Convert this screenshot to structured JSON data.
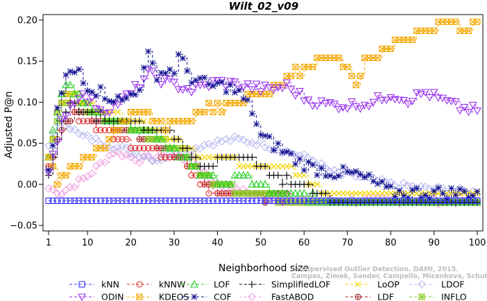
{
  "chart_data": {
    "type": "line",
    "title": "Wilt_02_v09",
    "xlabel": "Neighborhood size",
    "ylabel": "Adjusted P@n",
    "xlim": [
      1,
      100
    ],
    "ylim": [
      -0.05,
      0.2
    ],
    "xticks": [
      1,
      10,
      20,
      30,
      40,
      50,
      60,
      70,
      80,
      90,
      100
    ],
    "yticks": [
      -0.05,
      0.0,
      0.05,
      0.1,
      0.15,
      0.2
    ],
    "yticklabels": [
      "−0.05",
      "0.00",
      "0.05",
      "0.10",
      "0.15",
      "0.20"
    ],
    "grid": false,
    "legend_position": "bottom",
    "watermark": [
      "Campos, Zimek, Sander, Campello, Micenkova, Schubert, Assent, Houle",
      "Unsupervised Outlier Detection. DAMI, 2015."
    ],
    "series": [
      {
        "name": "kNN",
        "color": "#3232ff",
        "marker": "square",
        "knots": [
          [
            1,
            -0.02
          ],
          [
            100,
            -0.02
          ]
        ]
      },
      {
        "name": "kNNW",
        "color": "#dd2b2b",
        "marker": "circle",
        "knots": [
          [
            1,
            0.023
          ],
          [
            3,
            0.09
          ],
          [
            5,
            0.11
          ],
          [
            8,
            0.08
          ],
          [
            12,
            0.07
          ],
          [
            16,
            0.06
          ],
          [
            20,
            0.05
          ],
          [
            26,
            0.04
          ],
          [
            32,
            0.03
          ],
          [
            36,
            0.0
          ],
          [
            40,
            -0.009
          ],
          [
            45,
            -0.009
          ],
          [
            52,
            -0.015
          ],
          [
            60,
            -0.02
          ],
          [
            100,
            -0.02
          ]
        ]
      },
      {
        "name": "LOF",
        "color": "#22cc22",
        "marker": "triangle-up",
        "knots": [
          [
            1,
            0.035
          ],
          [
            3,
            0.09
          ],
          [
            5,
            0.125
          ],
          [
            8,
            0.11
          ],
          [
            11,
            0.09
          ],
          [
            15,
            0.08
          ],
          [
            20,
            0.07
          ],
          [
            26,
            0.06
          ],
          [
            30,
            0.04
          ],
          [
            35,
            0.02
          ],
          [
            38,
            0.008
          ],
          [
            42,
            0.0
          ],
          [
            45,
            0.013
          ],
          [
            48,
            0.005
          ],
          [
            52,
            -0.01
          ],
          [
            60,
            -0.018
          ],
          [
            100,
            -0.02
          ]
        ]
      },
      {
        "name": "SimplifiedLOF",
        "color": "#000000",
        "marker": "plus",
        "knots": [
          [
            1,
            0.008
          ],
          [
            3,
            0.06
          ],
          [
            6,
            0.1
          ],
          [
            9,
            0.088
          ],
          [
            14,
            0.08
          ],
          [
            18,
            0.075
          ],
          [
            24,
            0.07
          ],
          [
            28,
            0.068
          ],
          [
            32,
            0.045
          ],
          [
            36,
            0.025
          ],
          [
            40,
            0.03
          ],
          [
            45,
            0.035
          ],
          [
            50,
            0.02
          ],
          [
            55,
            0.005
          ],
          [
            60,
            0.0
          ],
          [
            64,
            -0.012
          ],
          [
            68,
            -0.02
          ],
          [
            100,
            -0.02
          ]
        ]
      },
      {
        "name": "LoOP",
        "color": "#f2d500",
        "marker": "x",
        "knots": [
          [
            1,
            0.03
          ],
          [
            3,
            0.09
          ],
          [
            6,
            0.11
          ],
          [
            10,
            0.095
          ],
          [
            16,
            0.085
          ],
          [
            22,
            0.075
          ],
          [
            28,
            0.06
          ],
          [
            33,
            0.045
          ],
          [
            38,
            0.03
          ],
          [
            44,
            0.03
          ],
          [
            50,
            0.025
          ],
          [
            56,
            0.02
          ],
          [
            62,
            0.0
          ],
          [
            66,
            -0.01
          ],
          [
            100,
            -0.01
          ]
        ]
      },
      {
        "name": "LDOF",
        "color": "#b8b8f0",
        "marker": "diamond",
        "knots": [
          [
            1,
            0.05
          ],
          [
            4,
            0.08
          ],
          [
            8,
            0.06
          ],
          [
            14,
            0.05
          ],
          [
            20,
            0.04
          ],
          [
            26,
            0.03
          ],
          [
            32,
            0.04
          ],
          [
            38,
            0.05
          ],
          [
            44,
            0.055
          ],
          [
            50,
            0.05
          ],
          [
            56,
            0.04
          ],
          [
            62,
            0.03
          ],
          [
            66,
            0.015
          ],
          [
            72,
            0.01
          ],
          [
            80,
            0.0
          ],
          [
            88,
            -0.005
          ],
          [
            100,
            -0.01
          ]
        ]
      },
      {
        "name": "ODIN",
        "color": "#9933ee",
        "marker": "triangle-down",
        "knots": [
          [
            1,
            0.01
          ],
          [
            4,
            0.08
          ],
          [
            8,
            0.11
          ],
          [
            14,
            0.09
          ],
          [
            20,
            0.11
          ],
          [
            24,
            0.135
          ],
          [
            28,
            0.125
          ],
          [
            34,
            0.115
          ],
          [
            40,
            0.125
          ],
          [
            46,
            0.12
          ],
          [
            52,
            0.115
          ],
          [
            56,
            0.12
          ],
          [
            60,
            0.105
          ],
          [
            64,
            0.098
          ],
          [
            70,
            0.096
          ],
          [
            76,
            0.1
          ],
          [
            80,
            0.11
          ],
          [
            84,
            0.103
          ],
          [
            88,
            0.112
          ],
          [
            92,
            0.102
          ],
          [
            96,
            0.093
          ],
          [
            100,
            0.09
          ]
        ]
      },
      {
        "name": "KDEOS",
        "color": "#f5a800",
        "marker": "square-x",
        "knots": [
          [
            1,
            0.03
          ],
          [
            3,
            0.0
          ],
          [
            6,
            0.02
          ],
          [
            10,
            0.03
          ],
          [
            14,
            0.05
          ],
          [
            18,
            0.07
          ],
          [
            22,
            0.09
          ],
          [
            26,
            0.08
          ],
          [
            30,
            0.07
          ],
          [
            34,
            0.08
          ],
          [
            38,
            0.09
          ],
          [
            44,
            0.1
          ],
          [
            48,
            0.11
          ],
          [
            52,
            0.113
          ],
          [
            56,
            0.125
          ],
          [
            58,
            0.135
          ],
          [
            62,
            0.145
          ],
          [
            66,
            0.155
          ],
          [
            70,
            0.145
          ],
          [
            72,
            0.12
          ],
          [
            74,
            0.155
          ],
          [
            78,
            0.16
          ],
          [
            82,
            0.175
          ],
          [
            86,
            0.18
          ],
          [
            90,
            0.19
          ],
          [
            94,
            0.2
          ],
          [
            98,
            0.19
          ],
          [
            100,
            0.2
          ]
        ]
      },
      {
        "name": "COF",
        "color": "#101090",
        "marker": "star",
        "knots": [
          [
            1,
            0.01
          ],
          [
            3,
            0.09
          ],
          [
            5,
            0.13
          ],
          [
            8,
            0.14
          ],
          [
            10,
            0.12
          ],
          [
            14,
            0.11
          ],
          [
            18,
            0.1
          ],
          [
            22,
            0.12
          ],
          [
            24,
            0.155
          ],
          [
            26,
            0.135
          ],
          [
            30,
            0.14
          ],
          [
            31,
            0.155
          ],
          [
            34,
            0.13
          ],
          [
            38,
            0.12
          ],
          [
            42,
            0.12
          ],
          [
            45,
            0.11
          ],
          [
            48,
            0.09
          ],
          [
            50,
            0.058
          ],
          [
            54,
            0.045
          ],
          [
            58,
            0.03
          ],
          [
            62,
            0.02
          ],
          [
            66,
            0.015
          ],
          [
            72,
            0.012
          ],
          [
            76,
            0.003
          ],
          [
            80,
            -0.01
          ],
          [
            100,
            -0.01
          ]
        ]
      },
      {
        "name": "FastABOD",
        "color": "#f0a0e0",
        "marker": "diamond",
        "knots": [
          [
            1,
            -0.005
          ],
          [
            4,
            -0.01
          ],
          [
            10,
            0.01
          ],
          [
            16,
            0.04
          ],
          [
            22,
            0.03
          ],
          [
            28,
            0.035
          ],
          [
            34,
            0.03
          ],
          [
            40,
            0.0
          ],
          [
            50,
            -0.015
          ],
          [
            60,
            -0.02
          ],
          [
            100,
            -0.02
          ]
        ]
      },
      {
        "name": "LDF",
        "color": "#a02020",
        "marker": "circle-plus",
        "knots": [
          [
            1,
            0.02
          ],
          [
            4,
            0.07
          ],
          [
            8,
            0.09
          ],
          [
            14,
            0.075
          ],
          [
            20,
            0.065
          ],
          [
            26,
            0.05
          ],
          [
            32,
            0.03
          ],
          [
            36,
            0.01
          ],
          [
            40,
            -0.01
          ],
          [
            50,
            -0.015
          ],
          [
            60,
            -0.02
          ],
          [
            100,
            -0.02
          ]
        ]
      },
      {
        "name": "INFLO",
        "color": "#88cc22",
        "marker": "star-square",
        "knots": [
          [
            1,
            0.03
          ],
          [
            4,
            0.1
          ],
          [
            7,
            0.11
          ],
          [
            10,
            0.09
          ],
          [
            15,
            0.08
          ],
          [
            20,
            0.07
          ],
          [
            26,
            0.055
          ],
          [
            32,
            0.04
          ],
          [
            36,
            0.01
          ],
          [
            40,
            0.0
          ],
          [
            46,
            -0.01
          ],
          [
            52,
            -0.015
          ],
          [
            60,
            -0.02
          ],
          [
            100,
            -0.02
          ]
        ]
      }
    ]
  }
}
